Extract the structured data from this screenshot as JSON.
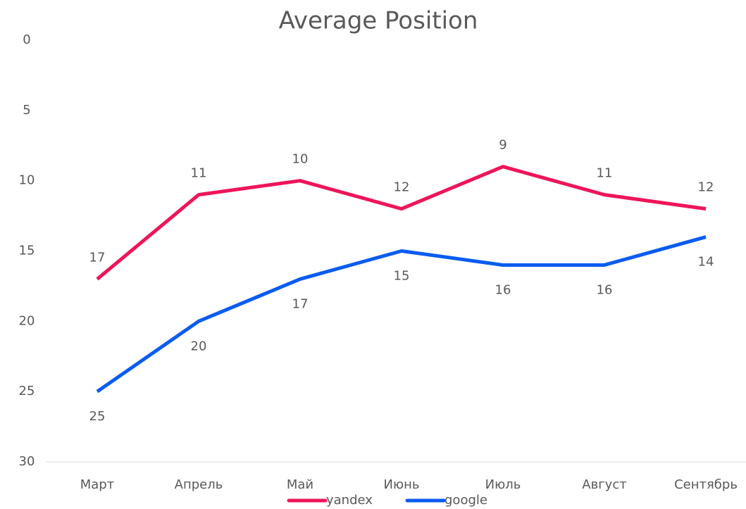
{
  "chart_data": {
    "type": "line",
    "title": "Average Position",
    "categories": [
      "Март",
      "Апрель",
      "Май",
      "Июнь",
      "Июль",
      "Август",
      "Сентябрь"
    ],
    "series": [
      {
        "name": "yandex",
        "color": "#ee1559",
        "values": [
          17,
          11,
          10,
          12,
          9,
          11,
          12
        ],
        "label_position": "above"
      },
      {
        "name": "google",
        "color": "#0a5cf0",
        "values": [
          25,
          20,
          17,
          15,
          16,
          16,
          14
        ],
        "label_position": "below"
      }
    ],
    "ylim": [
      0,
      30
    ],
    "yticks": [
      0,
      5,
      10,
      15,
      20,
      25,
      30
    ],
    "y_inverted": true,
    "grid": false,
    "data_labels": true,
    "legend": "bottom"
  }
}
